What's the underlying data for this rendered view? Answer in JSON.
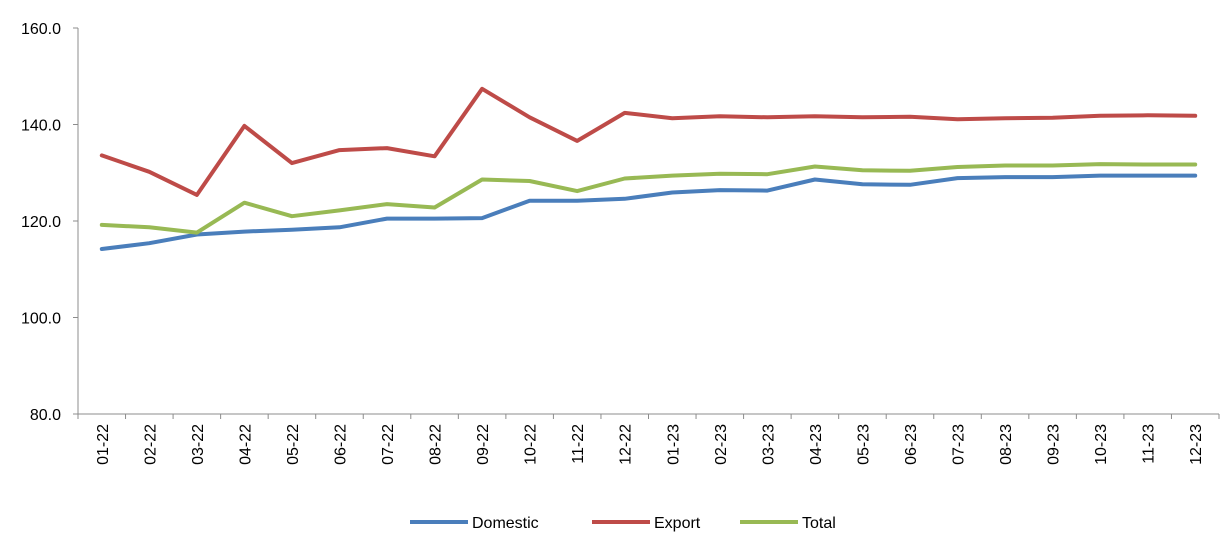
{
  "chart_data": {
    "type": "line",
    "title": "",
    "xlabel": "",
    "ylabel": "",
    "ylim": [
      80,
      160
    ],
    "yticks": [
      "80.0",
      "100.0",
      "120.0",
      "140.0",
      "160.0"
    ],
    "grid": false,
    "legend_position": "bottom",
    "categories": [
      "01-22",
      "02-22",
      "03-22",
      "04-22",
      "05-22",
      "06-22",
      "07-22",
      "08-22",
      "09-22",
      "10-22",
      "11-22",
      "12-22",
      "01-23",
      "02-23",
      "03-23",
      "04-23",
      "05-23",
      "06-23",
      "07-23",
      "08-23",
      "09-23",
      "10-23",
      "11-23",
      "12-23"
    ],
    "series": [
      {
        "name": "Domestic",
        "color": "#4a7ebb",
        "values": [
          114.2,
          115.4,
          117.2,
          117.8,
          118.2,
          118.7,
          120.5,
          120.5,
          120.6,
          124.2,
          124.2,
          124.6,
          125.9,
          126.4,
          126.3,
          128.6,
          127.6,
          127.5,
          128.9,
          129.1,
          129.1,
          129.4,
          129.4,
          129.4
        ]
      },
      {
        "name": "Export",
        "color": "#be4b48",
        "values": [
          133.6,
          130.2,
          125.4,
          139.7,
          132.0,
          134.7,
          135.1,
          133.4,
          147.4,
          141.5,
          136.6,
          142.4,
          141.3,
          141.7,
          141.5,
          141.7,
          141.5,
          141.6,
          141.1,
          141.3,
          141.4,
          141.8,
          141.9,
          141.8
        ]
      },
      {
        "name": "Total",
        "color": "#98b954",
        "values": [
          119.2,
          118.7,
          117.6,
          123.8,
          121.0,
          122.2,
          123.5,
          122.8,
          128.6,
          128.3,
          126.2,
          128.8,
          129.4,
          129.8,
          129.7,
          131.3,
          130.5,
          130.4,
          131.2,
          131.5,
          131.5,
          131.8,
          131.7,
          131.7
        ]
      }
    ]
  }
}
